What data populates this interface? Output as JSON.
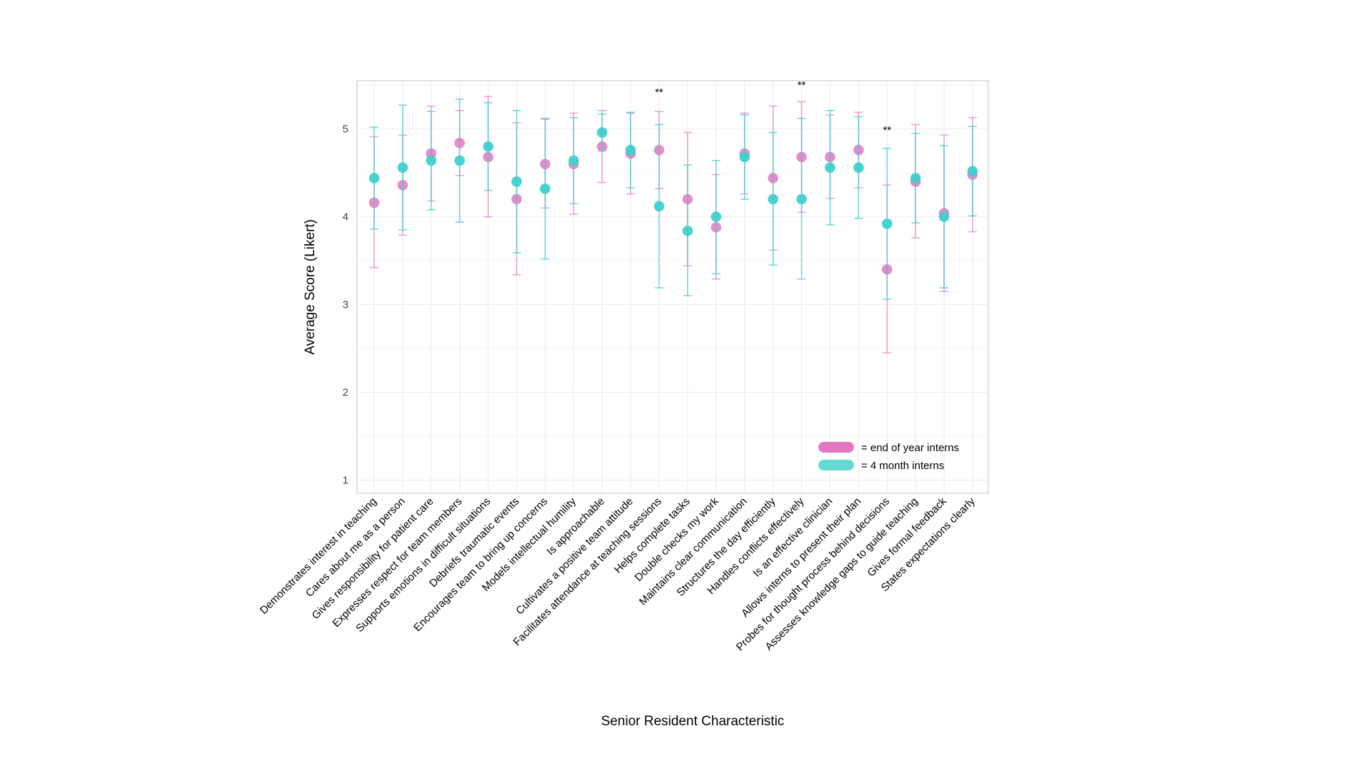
{
  "chart_data": {
    "type": "scatter",
    "xlabel": "Senior Resident Characteristic",
    "ylabel": "Average Score (Likert)",
    "ylim": [
      0.85,
      5.55
    ],
    "yticks": [
      1,
      2,
      3,
      4,
      5
    ],
    "grid": true,
    "legend_position": "bottom-right",
    "categories": [
      "Demonstrates interest in teaching",
      "Cares about me as a person",
      "Gives responsibility for patient care",
      "Expresses respect for team members",
      "Supports emotions in difficult situations",
      "Debriefs traumatic events",
      "Encourages team to bring up concerns",
      "Models intellectual humility",
      "Is approachable",
      "Cultivates a positive team attitude",
      "Facilitates attendance at teaching sessions",
      "Helps complete tasks",
      "Double checks my work",
      "Maintains clear communication",
      "Structures the day efficiently",
      "Handles conflicts effectively",
      "Is an effective clinician",
      "Allows interns to present their plan",
      "Probes for thought process behind decisions",
      "Assesses knowledge gaps to guide teaching",
      "Gives formal feedback",
      "States expectations clearly"
    ],
    "series": [
      {
        "name": "= end of year interns",
        "color": "#e377c2",
        "values": [
          4.16,
          4.36,
          4.72,
          4.84,
          4.68,
          4.2,
          4.6,
          4.6,
          4.8,
          4.72,
          4.76,
          4.2,
          3.88,
          4.72,
          4.44,
          4.68,
          4.68,
          4.76,
          3.4,
          4.4,
          4.04,
          4.48
        ],
        "lower": [
          3.42,
          3.79,
          4.18,
          4.47,
          4.0,
          3.34,
          4.1,
          4.03,
          4.39,
          4.26,
          4.32,
          3.44,
          3.29,
          4.26,
          3.62,
          4.05,
          4.21,
          4.33,
          2.45,
          3.76,
          3.15,
          3.83
        ],
        "upper": [
          4.91,
          4.93,
          5.26,
          5.21,
          5.37,
          5.07,
          5.11,
          5.18,
          5.21,
          5.18,
          5.2,
          4.96,
          4.48,
          5.18,
          5.26,
          5.31,
          5.16,
          5.19,
          4.36,
          5.05,
          4.93,
          5.13
        ]
      },
      {
        "name": "= 4 month interns",
        "color": "#40cfcf",
        "values": [
          4.44,
          4.56,
          4.64,
          4.64,
          4.8,
          4.4,
          4.32,
          4.64,
          4.96,
          4.76,
          4.12,
          3.84,
          4.0,
          4.68,
          4.2,
          4.2,
          4.56,
          4.56,
          3.92,
          4.44,
          4.0,
          4.52
        ],
        "lower": [
          3.86,
          3.85,
          4.08,
          3.94,
          4.3,
          3.59,
          3.52,
          4.15,
          4.75,
          4.33,
          3.19,
          3.1,
          3.35,
          4.2,
          3.45,
          3.29,
          3.91,
          3.98,
          3.06,
          3.93,
          3.19,
          4.01
        ],
        "upper": [
          5.02,
          5.27,
          5.2,
          5.34,
          5.3,
          5.21,
          5.12,
          5.13,
          5.17,
          5.19,
          5.05,
          4.59,
          4.64,
          5.16,
          4.96,
          5.12,
          5.21,
          5.14,
          4.78,
          4.95,
          4.81,
          5.03
        ]
      }
    ],
    "annotations": [
      {
        "category_index": 10,
        "text": "**",
        "y": 5.38
      },
      {
        "category_index": 15,
        "text": "**",
        "y": 5.46
      },
      {
        "category_index": 18,
        "text": "**",
        "y": 4.95
      }
    ]
  }
}
